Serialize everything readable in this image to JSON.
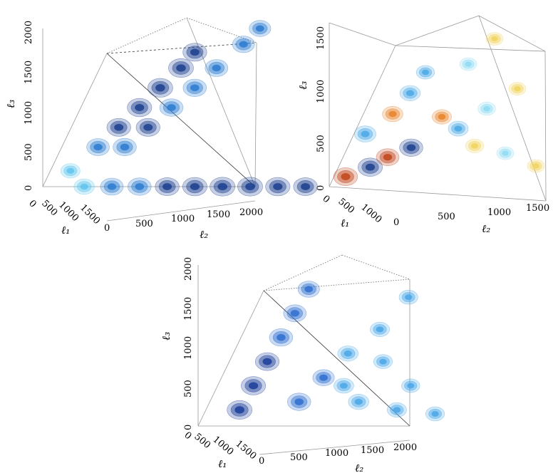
{
  "chart_data": [
    {
      "type": "scatter",
      "panel": "top-left",
      "axes": {
        "l1": {
          "label": "ℓ₁",
          "ticks": [
            "0",
            "500",
            "1000",
            "1500"
          ],
          "range": [
            0,
            2000
          ]
        },
        "l2": {
          "label": "ℓ₂",
          "ticks": [
            "0",
            "500",
            "1000",
            "1500",
            "2000"
          ],
          "range": [
            0,
            2000
          ]
        },
        "l3": {
          "label": "ℓ₃",
          "ticks": [
            "0",
            "500",
            "1000",
            "1500",
            "2000"
          ],
          "range": [
            0,
            2000
          ]
        }
      },
      "colormap": [
        "#1b3f8f",
        "#2b7bd0",
        "#5fc6ee",
        "#f4d36a",
        "#e7892a"
      ],
      "blobs": [
        {
          "l1": 200,
          "l2": 200,
          "l3": 200,
          "v": 0.5
        },
        {
          "l1": 400,
          "l2": 400,
          "l3": 500,
          "v": 0.8
        },
        {
          "l1": 550,
          "l2": 550,
          "l3": 750,
          "v": 0.9
        },
        {
          "l1": 700,
          "l2": 700,
          "l3": 1000,
          "v": 0.95
        },
        {
          "l1": 850,
          "l2": 850,
          "l3": 1250,
          "v": 1.0
        },
        {
          "l1": 1000,
          "l2": 1000,
          "l3": 1500,
          "v": 1.0
        },
        {
          "l1": 1100,
          "l2": 1100,
          "l3": 1700,
          "v": 0.9
        },
        {
          "l1": 150,
          "l2": 2000,
          "l3": 2000,
          "v": 0.7
        },
        {
          "l1": 300,
          "l2": 1800,
          "l3": 1800,
          "v": 0.75
        },
        {
          "l1": 450,
          "l2": 1500,
          "l3": 1500,
          "v": 0.8
        },
        {
          "l1": 600,
          "l2": 1250,
          "l3": 1250,
          "v": 0.85
        },
        {
          "l1": 700,
          "l2": 1000,
          "l3": 1000,
          "v": 0.85
        },
        {
          "l1": 800,
          "l2": 750,
          "l3": 750,
          "v": 0.9
        },
        {
          "l1": 900,
          "l2": 500,
          "l3": 500,
          "v": 0.85
        },
        {
          "l1": 300,
          "l2": 300,
          "l3": 0,
          "v": 0.6
        },
        {
          "l1": 500,
          "l2": 500,
          "l3": 0,
          "v": 0.8
        },
        {
          "l1": 700,
          "l2": 700,
          "l3": 0,
          "v": 0.85
        },
        {
          "l1": 900,
          "l2": 900,
          "l3": 0,
          "v": 0.9
        },
        {
          "l1": 1100,
          "l2": 1100,
          "l3": 0,
          "v": 0.95
        },
        {
          "l1": 1300,
          "l2": 1300,
          "l3": 0,
          "v": 1.0
        },
        {
          "l1": 1500,
          "l2": 1500,
          "l3": 0,
          "v": 1.0
        },
        {
          "l1": 1700,
          "l2": 1700,
          "l3": 0,
          "v": 0.95
        },
        {
          "l1": 1900,
          "l2": 1900,
          "l3": 0,
          "v": 0.9
        }
      ]
    },
    {
      "type": "scatter",
      "panel": "top-right",
      "axes": {
        "l1": {
          "label": "ℓ₁",
          "ticks": [
            "0",
            "500",
            "1000"
          ],
          "range": [
            0,
            1500
          ]
        },
        "l2": {
          "label": "ℓ₂",
          "ticks": [
            "0",
            "500",
            "1000",
            "1500"
          ],
          "range": [
            0,
            1500
          ]
        },
        "l3": {
          "label": "ℓ₃",
          "ticks": [
            "0",
            "500",
            "1000",
            "1500"
          ],
          "range": [
            0,
            1500
          ]
        }
      },
      "colormap": [
        "#1b3f8f",
        "#4aa8e6",
        "#8fdcf3",
        "#f2d35e",
        "#e7822a",
        "#c0451a"
      ],
      "blobs": [
        {
          "l1": 100,
          "l2": 100,
          "l3": 100,
          "v": -0.9
        },
        {
          "l1": 250,
          "l2": 250,
          "l3": 200,
          "v": 0.95
        },
        {
          "l1": 400,
          "l2": 350,
          "l3": 300,
          "v": -0.8
        },
        {
          "l1": 500,
          "l2": 500,
          "l3": 400,
          "v": 0.85
        },
        {
          "l1": 350,
          "l2": 200,
          "l3": 500,
          "v": 0.7
        },
        {
          "l1": 300,
          "l2": 400,
          "l3": 700,
          "v": -0.6
        },
        {
          "l1": 450,
          "l2": 500,
          "l3": 900,
          "v": 0.6
        },
        {
          "l1": 500,
          "l2": 600,
          "l3": 1100,
          "v": 0.4
        },
        {
          "l1": 600,
          "l2": 700,
          "l3": 700,
          "v": -0.5
        },
        {
          "l1": 700,
          "l2": 800,
          "l3": 600,
          "v": 0.55
        },
        {
          "l1": 700,
          "l2": 1000,
          "l3": 800,
          "v": 0.35
        },
        {
          "l1": 800,
          "l2": 900,
          "l3": 450,
          "v": -0.4
        },
        {
          "l1": 900,
          "l2": 1100,
          "l3": 400,
          "v": 0.3
        },
        {
          "l1": 1000,
          "l2": 1300,
          "l3": 300,
          "v": -0.3
        },
        {
          "l1": 500,
          "l2": 900,
          "l3": 1200,
          "v": 0.3
        },
        {
          "l1": 400,
          "l2": 1100,
          "l3": 1450,
          "v": -0.3
        },
        {
          "l1": 800,
          "l2": 1200,
          "l3": 1000,
          "v": -0.3
        }
      ]
    },
    {
      "type": "scatter",
      "panel": "bottom",
      "axes": {
        "l1": {
          "label": "ℓ₁",
          "ticks": [
            "0",
            "500",
            "1000",
            "1500"
          ],
          "range": [
            0,
            2000
          ]
        },
        "l2": {
          "label": "ℓ₂",
          "ticks": [
            "0",
            "500",
            "1000",
            "1500",
            "2000"
          ],
          "range": [
            0,
            2000
          ]
        },
        "l3": {
          "label": "ℓ₃",
          "ticks": [
            "0",
            "500",
            "1000",
            "1500",
            "2000"
          ],
          "range": [
            0,
            2000
          ]
        }
      },
      "colormap": [
        "#1a3d9a",
        "#2f6fd0",
        "#4aa7e8",
        "#78d0f0",
        "#b4ecf7"
      ],
      "blobs": [
        {
          "l1": 300,
          "l2": 300,
          "l3": 200,
          "v": 1.0
        },
        {
          "l1": 400,
          "l2": 400,
          "l3": 500,
          "v": 0.95
        },
        {
          "l1": 500,
          "l2": 500,
          "l3": 800,
          "v": 0.9
        },
        {
          "l1": 600,
          "l2": 600,
          "l3": 1100,
          "v": 0.85
        },
        {
          "l1": 700,
          "l2": 700,
          "l3": 1400,
          "v": 0.8
        },
        {
          "l1": 800,
          "l2": 800,
          "l3": 1700,
          "v": 0.7
        },
        {
          "l1": 500,
          "l2": 800,
          "l3": 300,
          "v": 0.85
        },
        {
          "l1": 600,
          "l2": 1000,
          "l3": 600,
          "v": 0.7
        },
        {
          "l1": 700,
          "l2": 1200,
          "l3": 900,
          "v": 0.6
        },
        {
          "l1": 700,
          "l2": 1500,
          "l3": 1200,
          "v": 0.5
        },
        {
          "l1": 600,
          "l2": 1800,
          "l3": 1600,
          "v": 0.45
        },
        {
          "l1": 700,
          "l2": 1300,
          "l3": 300,
          "v": 0.6
        },
        {
          "l1": 900,
          "l2": 1600,
          "l3": 200,
          "v": 0.5
        },
        {
          "l1": 1100,
          "l2": 1900,
          "l3": 150,
          "v": 0.45
        },
        {
          "l1": 900,
          "l2": 1100,
          "l3": 500,
          "v": 0.55
        },
        {
          "l1": 1000,
          "l2": 1700,
          "l3": 500,
          "v": 0.4
        },
        {
          "l1": 800,
          "l2": 1500,
          "l3": 800,
          "v": 0.45
        }
      ]
    }
  ]
}
